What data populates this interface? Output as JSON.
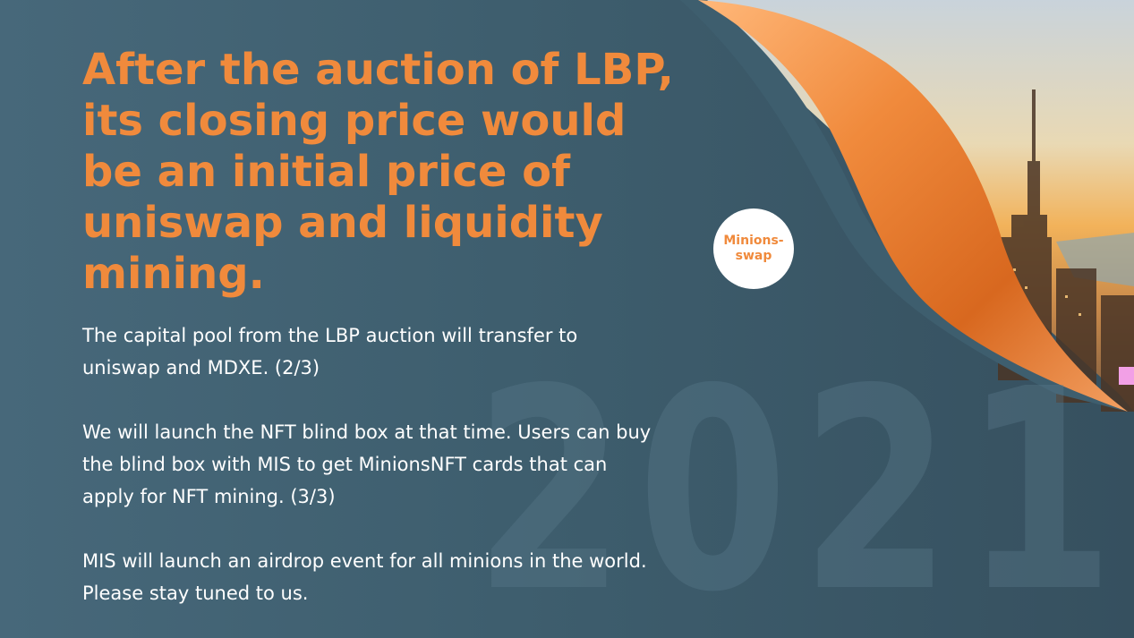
{
  "slide": {
    "headline": "After the auction of LBP, its closing price would be an initial price of uniswap and liquidity mining.",
    "paragraphs": [
      "The capital pool from the LBP auction will transfer to uniswap and MDXE. (2/3)",
      "We will launch the NFT blind box at that time. Users can buy the blind box with MIS to get MinionsNFT cards that can apply for NFT mining. (3/3)",
      "MIS will launch an airdrop event for all minions in the world. Please stay tuned to us."
    ],
    "badge": {
      "line1": "Minions-",
      "line2": "swap"
    },
    "watermark": "2021"
  },
  "colors": {
    "accent": "#f08a3c",
    "background": "#3e5e6e",
    "text": "#ffffff"
  }
}
